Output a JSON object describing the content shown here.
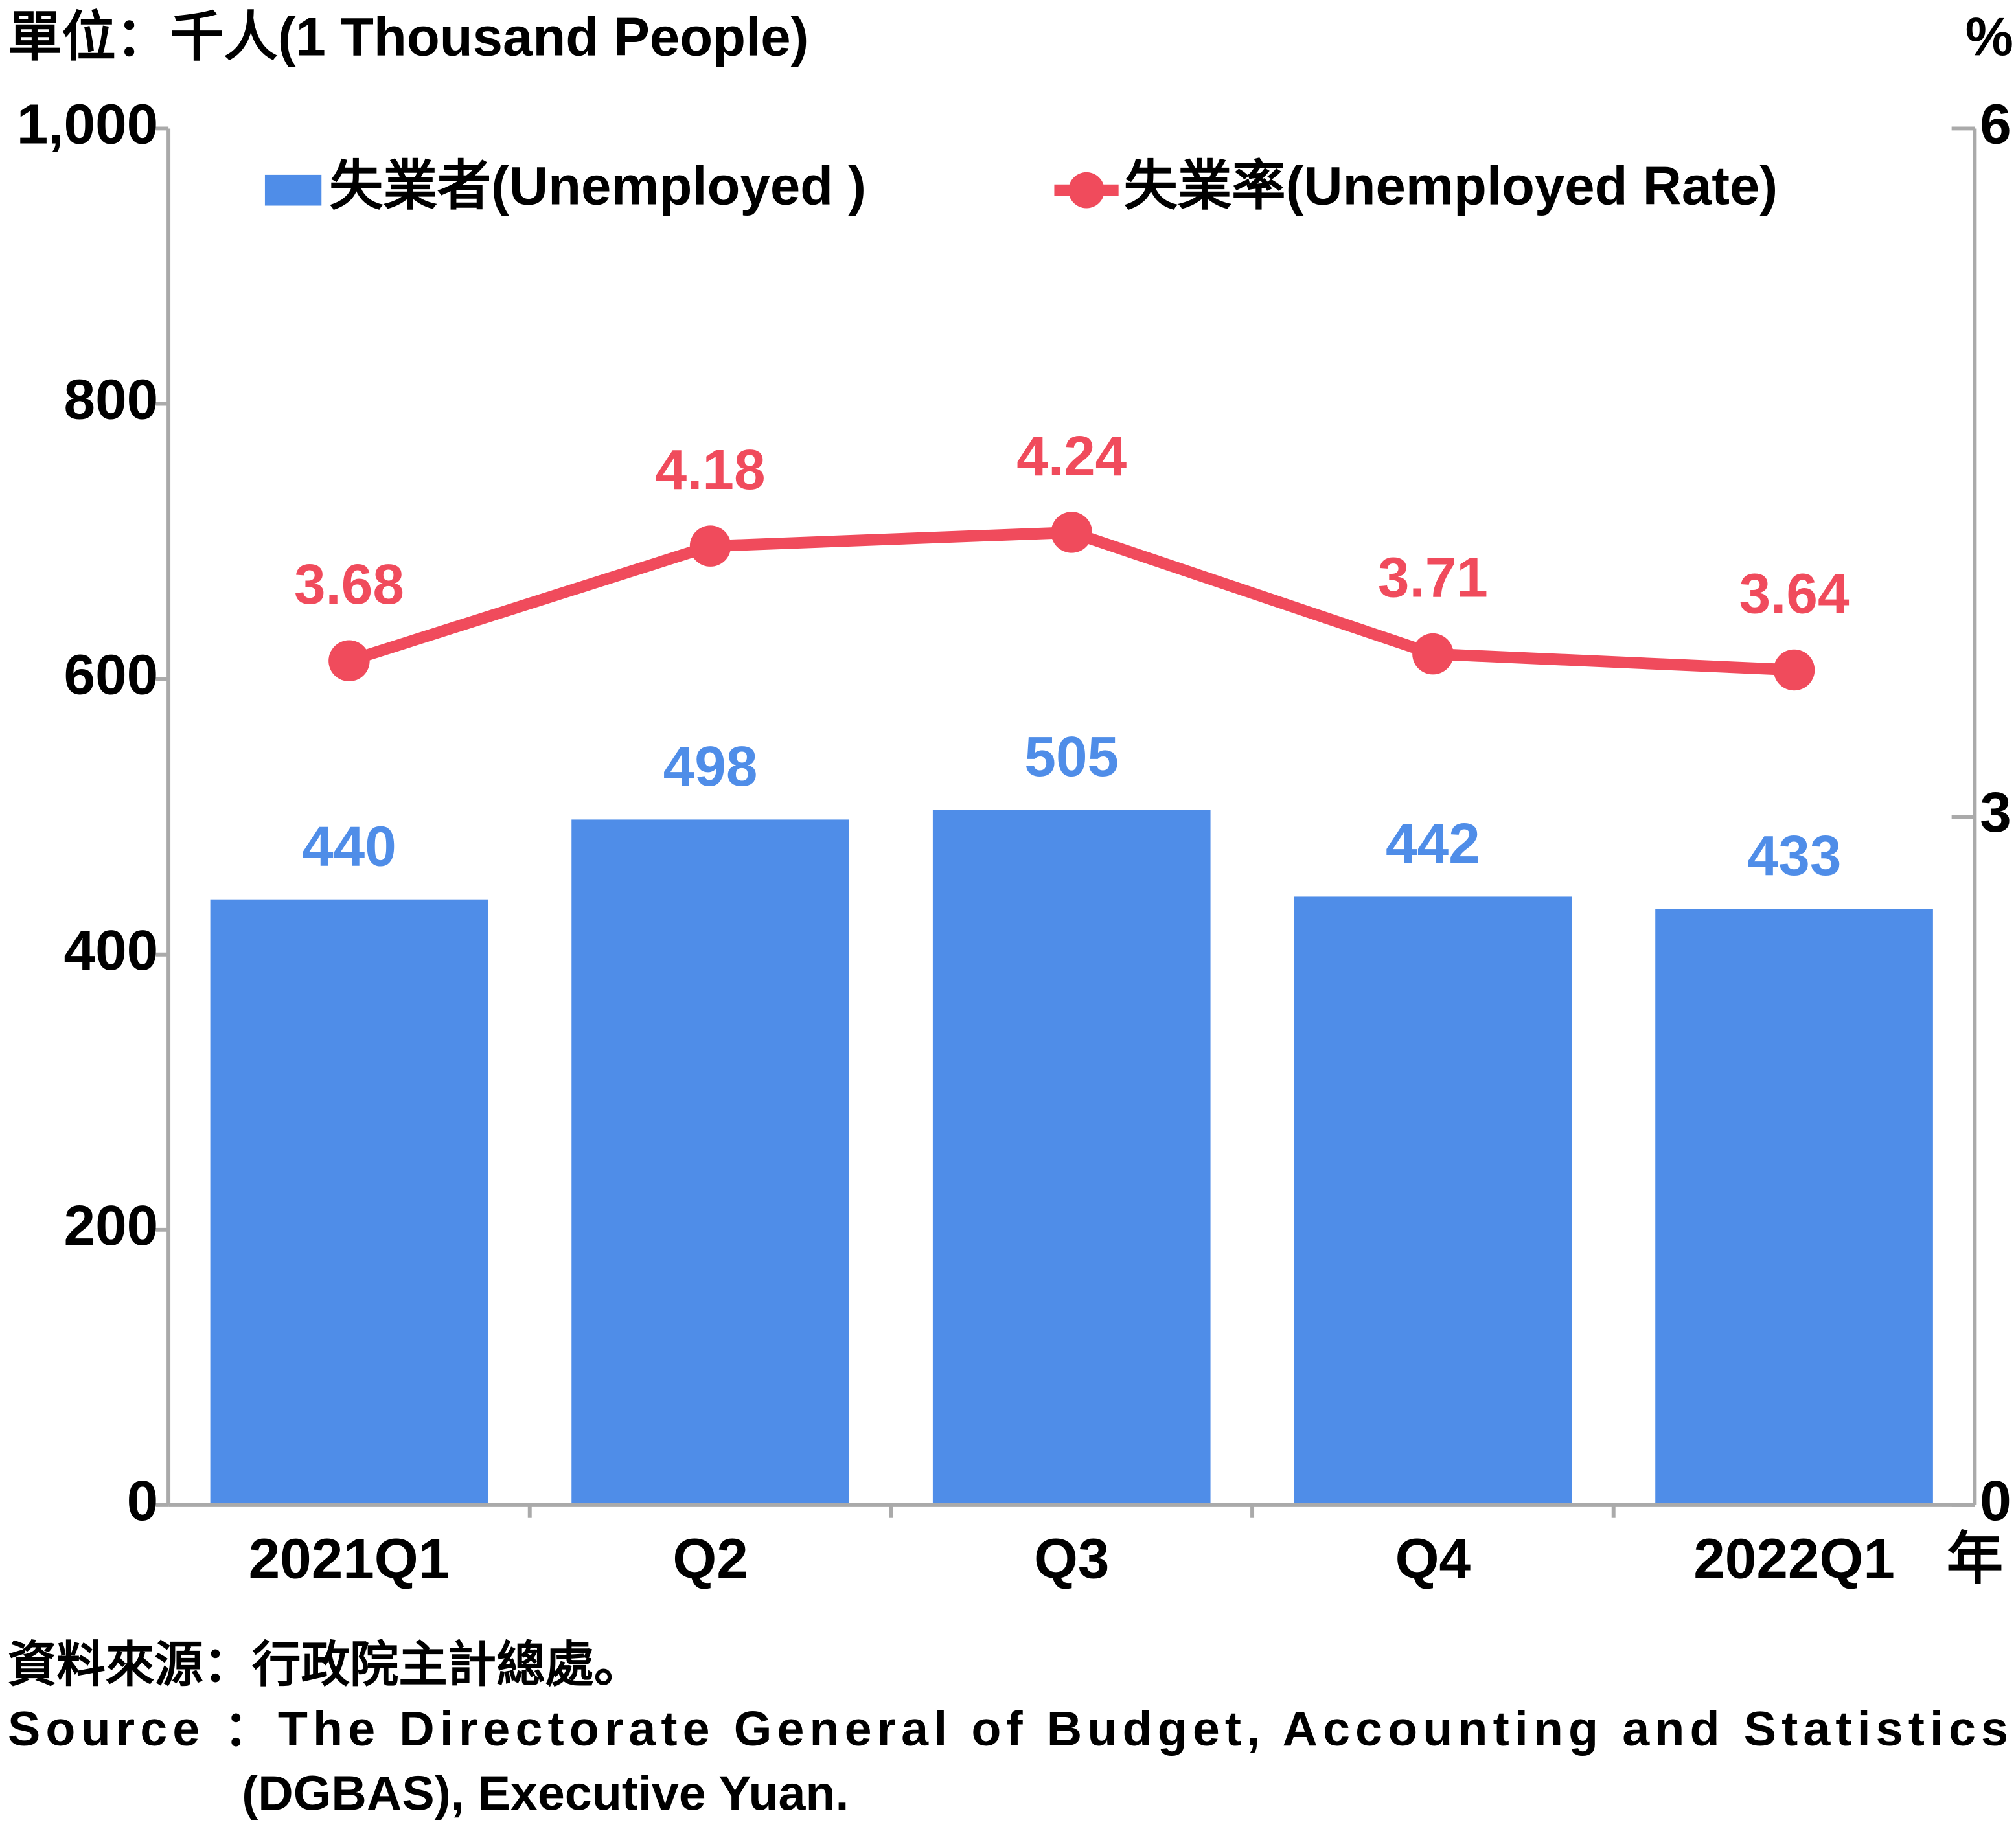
{
  "chart_data": {
    "type": "combo",
    "y_label": "單位：千人(1 Thousand People)",
    "y2_label": "%",
    "x_unit": "年",
    "categories": [
      "2021Q1",
      "Q2",
      "Q3",
      "Q4",
      "2022Q1"
    ],
    "series": [
      {
        "name": "失業者(Unemployed )",
        "type": "bar",
        "color": "#4f8de8",
        "values": [
          440,
          498,
          505,
          442,
          433
        ]
      },
      {
        "name": "失業率(Unemployed Rate)",
        "type": "line",
        "axis": "y2",
        "color": "#f04b5c",
        "values": [
          3.68,
          4.18,
          4.24,
          3.71,
          3.64
        ]
      }
    ],
    "ylim": [
      0,
      1000
    ],
    "yticks": [
      0,
      200,
      400,
      600,
      800,
      {
        "value": 1000,
        "label": "1,000"
      }
    ],
    "y2lim": [
      0,
      6
    ],
    "y2ticks": [
      0,
      3,
      6
    ],
    "source": [
      "資料來源：行政院主計總處。",
      "Source ：The Directorate General of Budget, Accounting and Statistics",
      "(DGBAS), Executive Yuan."
    ]
  }
}
